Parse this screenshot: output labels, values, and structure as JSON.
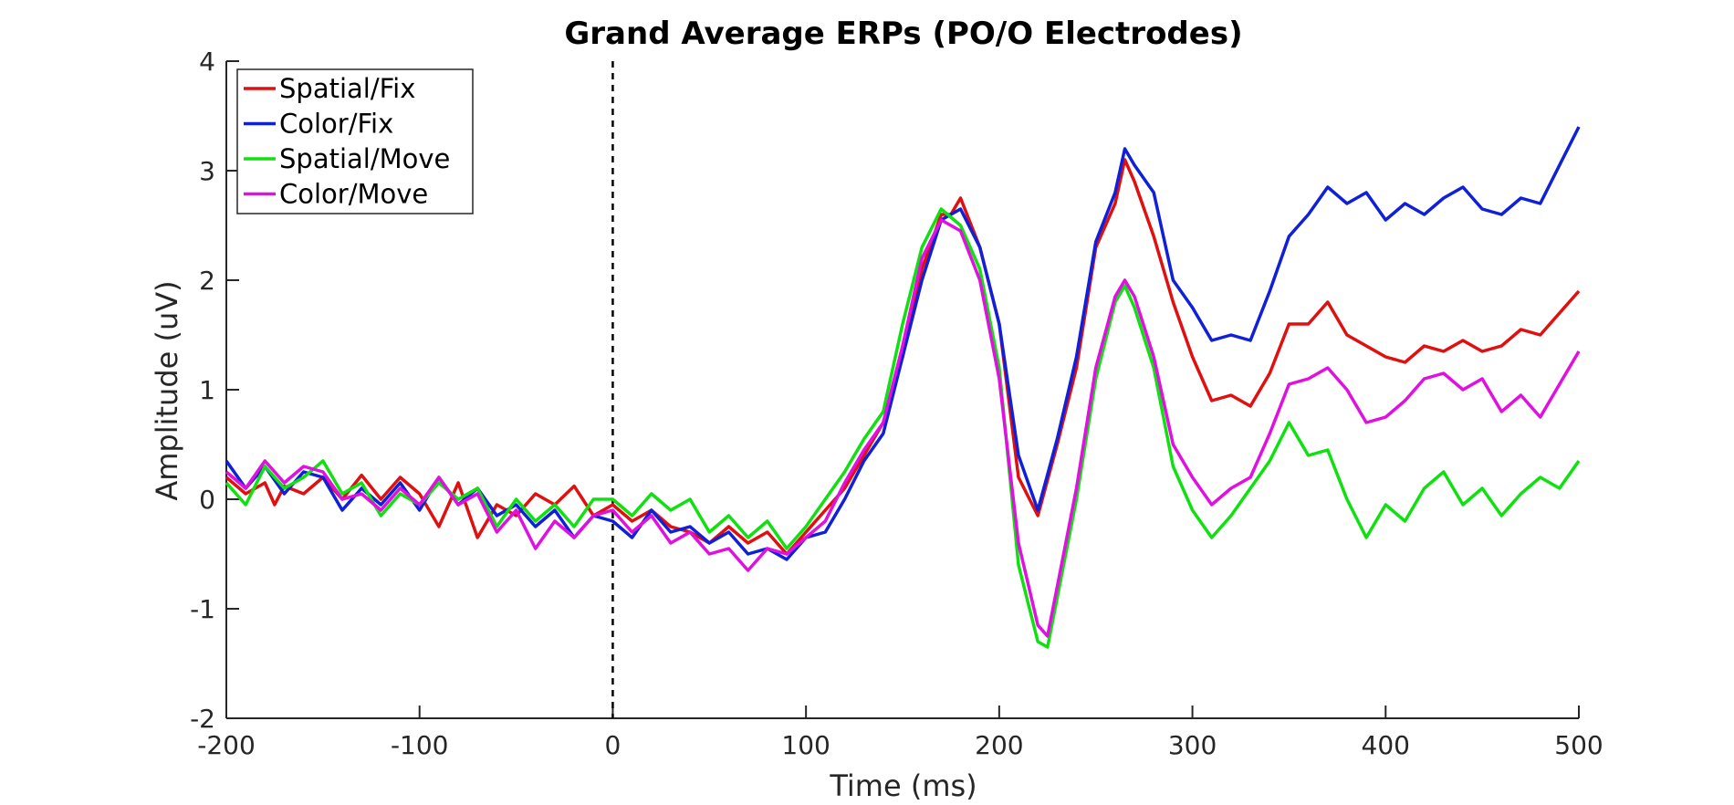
{
  "chart_data": {
    "type": "line",
    "title": "Grand Average ERPs (PO/O Electrodes)",
    "xlabel": "Time (ms)",
    "ylabel": "Amplitude (uV)",
    "xlim": [
      -200,
      500
    ],
    "ylim": [
      -2,
      4
    ],
    "xticks": [
      -200,
      -100,
      0,
      100,
      200,
      300,
      400,
      500
    ],
    "yticks": [
      -2,
      -1,
      0,
      1,
      2,
      3,
      4
    ],
    "xtick_labels": [
      "-200",
      "-100",
      "0",
      "100",
      "200",
      "300",
      "400",
      "500"
    ],
    "ytick_labels": [
      "-2",
      "-1",
      "0",
      "1",
      "2",
      "3",
      "4"
    ],
    "grid": false,
    "legend_position": "top-left",
    "onset_line": {
      "x": 0,
      "style": "dashed",
      "color": "#000000"
    },
    "series": [
      {
        "name": "Spatial/Fix",
        "color": "#e01010",
        "points": [
          [
            -200,
            0.2
          ],
          [
            -190,
            0.05
          ],
          [
            -180,
            0.15
          ],
          [
            -175,
            -0.05
          ],
          [
            -170,
            0.12
          ],
          [
            -160,
            0.05
          ],
          [
            -150,
            0.2
          ],
          [
            -140,
            0.0
          ],
          [
            -130,
            0.22
          ],
          [
            -120,
            0.0
          ],
          [
            -110,
            0.2
          ],
          [
            -100,
            0.05
          ],
          [
            -90,
            -0.25
          ],
          [
            -80,
            0.15
          ],
          [
            -70,
            -0.35
          ],
          [
            -60,
            -0.05
          ],
          [
            -50,
            -0.15
          ],
          [
            -40,
            0.05
          ],
          [
            -30,
            -0.05
          ],
          [
            -20,
            0.12
          ],
          [
            -10,
            -0.15
          ],
          [
            0,
            -0.05
          ],
          [
            10,
            -0.2
          ],
          [
            20,
            -0.1
          ],
          [
            30,
            -0.25
          ],
          [
            40,
            -0.3
          ],
          [
            50,
            -0.4
          ],
          [
            60,
            -0.25
          ],
          [
            70,
            -0.4
          ],
          [
            80,
            -0.3
          ],
          [
            90,
            -0.5
          ],
          [
            100,
            -0.3
          ],
          [
            110,
            -0.1
          ],
          [
            120,
            0.1
          ],
          [
            130,
            0.4
          ],
          [
            140,
            0.7
          ],
          [
            150,
            1.3
          ],
          [
            160,
            2.1
          ],
          [
            170,
            2.6
          ],
          [
            175,
            2.6
          ],
          [
            180,
            2.75
          ],
          [
            190,
            2.3
          ],
          [
            200,
            1.6
          ],
          [
            210,
            0.2
          ],
          [
            220,
            -0.15
          ],
          [
            230,
            0.5
          ],
          [
            240,
            1.2
          ],
          [
            250,
            2.3
          ],
          [
            260,
            2.7
          ],
          [
            265,
            3.1
          ],
          [
            270,
            2.9
          ],
          [
            280,
            2.4
          ],
          [
            290,
            1.8
          ],
          [
            300,
            1.3
          ],
          [
            310,
            0.9
          ],
          [
            320,
            0.95
          ],
          [
            330,
            0.85
          ],
          [
            340,
            1.15
          ],
          [
            350,
            1.6
          ],
          [
            360,
            1.6
          ],
          [
            370,
            1.8
          ],
          [
            380,
            1.5
          ],
          [
            390,
            1.4
          ],
          [
            400,
            1.3
          ],
          [
            410,
            1.25
          ],
          [
            420,
            1.4
          ],
          [
            430,
            1.35
          ],
          [
            440,
            1.45
          ],
          [
            450,
            1.35
          ],
          [
            460,
            1.4
          ],
          [
            470,
            1.55
          ],
          [
            480,
            1.5
          ],
          [
            490,
            1.7
          ],
          [
            500,
            1.9
          ]
        ]
      },
      {
        "name": "Color/Fix",
        "color": "#1020d8",
        "points": [
          [
            -200,
            0.35
          ],
          [
            -190,
            0.1
          ],
          [
            -180,
            0.3
          ],
          [
            -170,
            0.05
          ],
          [
            -160,
            0.25
          ],
          [
            -150,
            0.2
          ],
          [
            -140,
            -0.1
          ],
          [
            -130,
            0.1
          ],
          [
            -120,
            -0.05
          ],
          [
            -110,
            0.15
          ],
          [
            -100,
            -0.1
          ],
          [
            -90,
            0.2
          ],
          [
            -80,
            -0.05
          ],
          [
            -70,
            0.1
          ],
          [
            -60,
            -0.15
          ],
          [
            -50,
            -0.05
          ],
          [
            -40,
            -0.25
          ],
          [
            -30,
            -0.1
          ],
          [
            -20,
            -0.35
          ],
          [
            -10,
            -0.15
          ],
          [
            0,
            -0.2
          ],
          [
            10,
            -0.35
          ],
          [
            20,
            -0.1
          ],
          [
            30,
            -0.3
          ],
          [
            40,
            -0.25
          ],
          [
            50,
            -0.4
          ],
          [
            60,
            -0.3
          ],
          [
            70,
            -0.5
          ],
          [
            80,
            -0.45
          ],
          [
            90,
            -0.55
          ],
          [
            100,
            -0.35
          ],
          [
            110,
            -0.3
          ],
          [
            120,
            0.0
          ],
          [
            130,
            0.35
          ],
          [
            140,
            0.6
          ],
          [
            150,
            1.3
          ],
          [
            160,
            2.0
          ],
          [
            170,
            2.55
          ],
          [
            180,
            2.65
          ],
          [
            190,
            2.3
          ],
          [
            200,
            1.6
          ],
          [
            210,
            0.4
          ],
          [
            220,
            -0.1
          ],
          [
            230,
            0.55
          ],
          [
            240,
            1.3
          ],
          [
            250,
            2.35
          ],
          [
            260,
            2.8
          ],
          [
            265,
            3.2
          ],
          [
            270,
            3.05
          ],
          [
            280,
            2.8
          ],
          [
            290,
            2.0
          ],
          [
            300,
            1.75
          ],
          [
            310,
            1.45
          ],
          [
            320,
            1.5
          ],
          [
            330,
            1.45
          ],
          [
            340,
            1.9
          ],
          [
            350,
            2.4
          ],
          [
            360,
            2.6
          ],
          [
            370,
            2.85
          ],
          [
            380,
            2.7
          ],
          [
            390,
            2.8
          ],
          [
            400,
            2.55
          ],
          [
            410,
            2.7
          ],
          [
            420,
            2.6
          ],
          [
            430,
            2.75
          ],
          [
            440,
            2.85
          ],
          [
            450,
            2.65
          ],
          [
            460,
            2.6
          ],
          [
            470,
            2.75
          ],
          [
            480,
            2.7
          ],
          [
            490,
            3.05
          ],
          [
            500,
            3.4
          ]
        ]
      },
      {
        "name": "Spatial/Move",
        "color": "#10e010",
        "points": [
          [
            -200,
            0.15
          ],
          [
            -190,
            -0.05
          ],
          [
            -180,
            0.3
          ],
          [
            -170,
            0.1
          ],
          [
            -160,
            0.2
          ],
          [
            -150,
            0.35
          ],
          [
            -140,
            0.05
          ],
          [
            -130,
            0.15
          ],
          [
            -120,
            -0.15
          ],
          [
            -110,
            0.05
          ],
          [
            -100,
            -0.05
          ],
          [
            -90,
            0.15
          ],
          [
            -80,
            0.0
          ],
          [
            -70,
            0.1
          ],
          [
            -60,
            -0.25
          ],
          [
            -50,
            0.0
          ],
          [
            -40,
            -0.2
          ],
          [
            -30,
            -0.05
          ],
          [
            -20,
            -0.25
          ],
          [
            -10,
            0.0
          ],
          [
            0,
            0.0
          ],
          [
            10,
            -0.15
          ],
          [
            20,
            0.05
          ],
          [
            30,
            -0.1
          ],
          [
            40,
            0.0
          ],
          [
            50,
            -0.3
          ],
          [
            60,
            -0.15
          ],
          [
            70,
            -0.35
          ],
          [
            80,
            -0.2
          ],
          [
            90,
            -0.45
          ],
          [
            100,
            -0.25
          ],
          [
            110,
            0.0
          ],
          [
            120,
            0.25
          ],
          [
            130,
            0.55
          ],
          [
            140,
            0.8
          ],
          [
            150,
            1.6
          ],
          [
            160,
            2.3
          ],
          [
            170,
            2.65
          ],
          [
            180,
            2.5
          ],
          [
            190,
            2.1
          ],
          [
            200,
            1.2
          ],
          [
            210,
            -0.6
          ],
          [
            220,
            -1.3
          ],
          [
            225,
            -1.35
          ],
          [
            230,
            -0.9
          ],
          [
            240,
            0.0
          ],
          [
            250,
            1.1
          ],
          [
            260,
            1.8
          ],
          [
            265,
            1.95
          ],
          [
            270,
            1.75
          ],
          [
            280,
            1.2
          ],
          [
            290,
            0.3
          ],
          [
            300,
            -0.1
          ],
          [
            310,
            -0.35
          ],
          [
            320,
            -0.15
          ],
          [
            330,
            0.1
          ],
          [
            340,
            0.35
          ],
          [
            350,
            0.7
          ],
          [
            360,
            0.4
          ],
          [
            370,
            0.45
          ],
          [
            380,
            0.0
          ],
          [
            390,
            -0.35
          ],
          [
            400,
            -0.05
          ],
          [
            410,
            -0.2
          ],
          [
            420,
            0.1
          ],
          [
            430,
            0.25
          ],
          [
            440,
            -0.05
          ],
          [
            450,
            0.1
          ],
          [
            460,
            -0.15
          ],
          [
            470,
            0.05
          ],
          [
            480,
            0.2
          ],
          [
            490,
            0.1
          ],
          [
            500,
            0.35
          ]
        ]
      },
      {
        "name": "Color/Move",
        "color": "#e010e0",
        "points": [
          [
            -200,
            0.25
          ],
          [
            -190,
            0.1
          ],
          [
            -180,
            0.35
          ],
          [
            -170,
            0.15
          ],
          [
            -160,
            0.3
          ],
          [
            -150,
            0.25
          ],
          [
            -140,
            0.0
          ],
          [
            -130,
            0.05
          ],
          [
            -120,
            -0.1
          ],
          [
            -110,
            0.1
          ],
          [
            -100,
            -0.05
          ],
          [
            -90,
            0.2
          ],
          [
            -80,
            -0.05
          ],
          [
            -70,
            0.05
          ],
          [
            -60,
            -0.3
          ],
          [
            -50,
            -0.1
          ],
          [
            -40,
            -0.45
          ],
          [
            -30,
            -0.2
          ],
          [
            -20,
            -0.35
          ],
          [
            -10,
            -0.15
          ],
          [
            0,
            -0.1
          ],
          [
            10,
            -0.3
          ],
          [
            20,
            -0.15
          ],
          [
            30,
            -0.4
          ],
          [
            40,
            -0.3
          ],
          [
            50,
            -0.5
          ],
          [
            60,
            -0.45
          ],
          [
            70,
            -0.65
          ],
          [
            80,
            -0.45
          ],
          [
            90,
            -0.5
          ],
          [
            100,
            -0.35
          ],
          [
            110,
            -0.2
          ],
          [
            120,
            0.15
          ],
          [
            130,
            0.45
          ],
          [
            140,
            0.7
          ],
          [
            150,
            1.4
          ],
          [
            160,
            2.2
          ],
          [
            170,
            2.55
          ],
          [
            180,
            2.45
          ],
          [
            190,
            2.0
          ],
          [
            200,
            1.1
          ],
          [
            210,
            -0.4
          ],
          [
            220,
            -1.15
          ],
          [
            225,
            -1.25
          ],
          [
            230,
            -0.8
          ],
          [
            240,
            0.1
          ],
          [
            250,
            1.2
          ],
          [
            260,
            1.85
          ],
          [
            265,
            2.0
          ],
          [
            270,
            1.85
          ],
          [
            280,
            1.3
          ],
          [
            290,
            0.5
          ],
          [
            300,
            0.2
          ],
          [
            310,
            -0.05
          ],
          [
            320,
            0.1
          ],
          [
            330,
            0.2
          ],
          [
            340,
            0.6
          ],
          [
            350,
            1.05
          ],
          [
            360,
            1.1
          ],
          [
            370,
            1.2
          ],
          [
            380,
            1.0
          ],
          [
            390,
            0.7
          ],
          [
            400,
            0.75
          ],
          [
            410,
            0.9
          ],
          [
            420,
            1.1
          ],
          [
            430,
            1.15
          ],
          [
            440,
            1.0
          ],
          [
            450,
            1.1
          ],
          [
            460,
            0.8
          ],
          [
            470,
            0.95
          ],
          [
            480,
            0.75
          ],
          [
            490,
            1.05
          ],
          [
            500,
            1.35
          ]
        ]
      }
    ]
  }
}
